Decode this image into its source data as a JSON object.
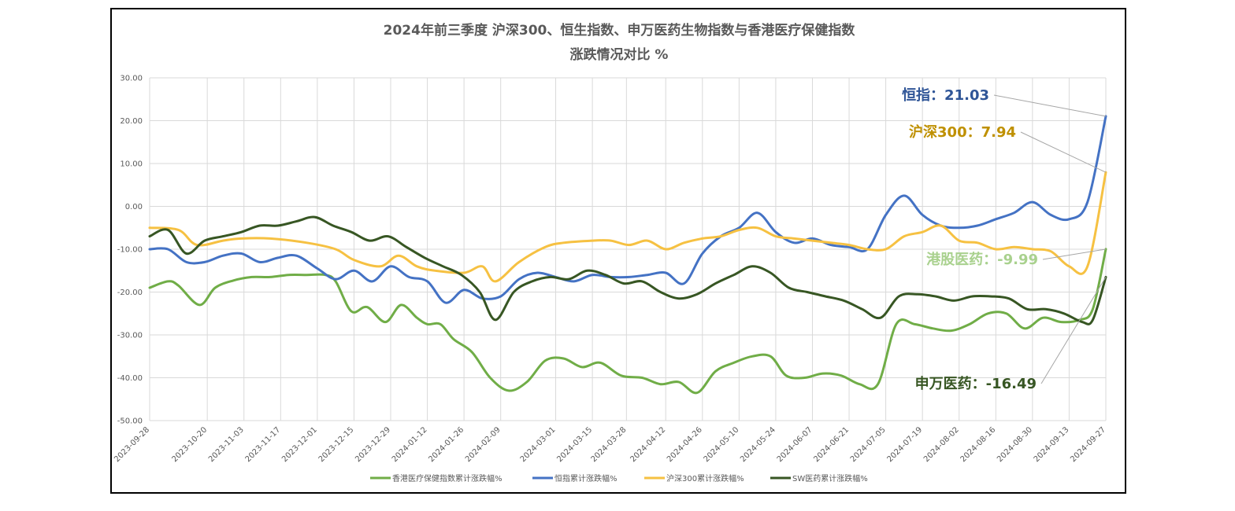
{
  "colors": {
    "hk_healthcare": "#70AD47",
    "hsi": "#4472C4",
    "csi300": "#F6C142",
    "sw_pharma": "#375623",
    "hsi_label": "#2F5597",
    "csi300_label": "#BF9000",
    "hk_healthcare_label": "#A9D18E",
    "sw_pharma_label": "#375623",
    "grid": "#D9D9D9",
    "leader": "#A6A6A6"
  },
  "chart_data": {
    "type": "line",
    "title": "2024年前三季度 沪深300、恒生指数、申万医药生物指数与香港医疗保健指数",
    "subtitle": "涨跌情况对比 %",
    "ylim": [
      -50,
      30
    ],
    "ytick_step": 10,
    "yticks": [
      "30.00",
      "20.00",
      "10.00",
      "0.00",
      "-10.00",
      "-20.00",
      "-30.00",
      "-40.00",
      "-50.00"
    ],
    "grid": true,
    "legend_position": "bottom",
    "x_range": [
      "2023-09-28",
      "2024-09-27"
    ],
    "x_ticks": [
      "2023-09-28",
      "2023-10-20",
      "2023-11-03",
      "2023-11-17",
      "2023-12-01",
      "2023-12-15",
      "2023-12-29",
      "2024-01-12",
      "2024-01-26",
      "2024-02-09",
      "2024-03-01",
      "2024-03-15",
      "2024-03-28",
      "2024-04-12",
      "2024-04-26",
      "2024-05-10",
      "2024-05-24",
      "2024-06-07",
      "2024-06-21",
      "2024-07-05",
      "2024-07-19",
      "2024-08-02",
      "2024-08-16",
      "2024-08-30",
      "2024-09-13",
      "2024-09-27"
    ],
    "series": [
      {
        "name": "香港医疗保健指数累计涨跌幅%",
        "color_key": "hk_healthcare",
        "points": [
          [
            "2023-09-28",
            -19
          ],
          [
            "2023-10-05",
            -17.5
          ],
          [
            "2023-10-09",
            -18.5
          ],
          [
            "2023-10-17",
            -23
          ],
          [
            "2023-10-23",
            -19
          ],
          [
            "2023-10-30",
            -17.3
          ],
          [
            "2023-11-06",
            -16.5
          ],
          [
            "2023-11-13",
            -16.5
          ],
          [
            "2023-11-20",
            -16
          ],
          [
            "2023-11-27",
            -16
          ],
          [
            "2023-12-04",
            -16
          ],
          [
            "2023-12-08",
            -17.5
          ],
          [
            "2023-12-14",
            -24.5
          ],
          [
            "2023-12-20",
            -23.5
          ],
          [
            "2023-12-27",
            -27
          ],
          [
            "2024-01-02",
            -23
          ],
          [
            "2024-01-08",
            -26
          ],
          [
            "2024-01-12",
            -27.5
          ],
          [
            "2024-01-17",
            -27.5
          ],
          [
            "2024-01-22",
            -31
          ],
          [
            "2024-01-29",
            -34
          ],
          [
            "2024-02-05",
            -40
          ],
          [
            "2024-02-12",
            -43
          ],
          [
            "2024-02-19",
            -41
          ],
          [
            "2024-02-26",
            -36
          ],
          [
            "2024-03-04",
            -35.5
          ],
          [
            "2024-03-11",
            -37.5
          ],
          [
            "2024-03-18",
            -36.5
          ],
          [
            "2024-03-26",
            -39.5
          ],
          [
            "2024-04-03",
            -40
          ],
          [
            "2024-04-10",
            -41.5
          ],
          [
            "2024-04-17",
            -41
          ],
          [
            "2024-04-24",
            -43.5
          ],
          [
            "2024-05-01",
            -38.5
          ],
          [
            "2024-05-08",
            -36.5
          ],
          [
            "2024-05-15",
            -35
          ],
          [
            "2024-05-22",
            -35
          ],
          [
            "2024-05-28",
            -39.5
          ],
          [
            "2024-06-04",
            -40
          ],
          [
            "2024-06-11",
            -39
          ],
          [
            "2024-06-18",
            -39.5
          ],
          [
            "2024-06-25",
            -41.5
          ],
          [
            "2024-07-02",
            -41.5
          ],
          [
            "2024-07-09",
            -27.5
          ],
          [
            "2024-07-16",
            -27.5
          ],
          [
            "2024-07-23",
            -28.5
          ],
          [
            "2024-07-30",
            -29
          ],
          [
            "2024-08-06",
            -27.5
          ],
          [
            "2024-08-13",
            -25
          ],
          [
            "2024-08-20",
            -25
          ],
          [
            "2024-08-27",
            -28.5
          ],
          [
            "2024-09-03",
            -26
          ],
          [
            "2024-09-10",
            -27
          ],
          [
            "2024-09-17",
            -26.5
          ],
          [
            "2024-09-22",
            -24
          ],
          [
            "2024-09-27",
            -9.99
          ]
        ]
      },
      {
        "name": "恒指累计涨跌幅%",
        "color_key": "hsi",
        "points": [
          [
            "2023-09-28",
            -10
          ],
          [
            "2023-10-05",
            -10
          ],
          [
            "2023-10-12",
            -13
          ],
          [
            "2023-10-19",
            -13
          ],
          [
            "2023-10-26",
            -11.5
          ],
          [
            "2023-11-02",
            -11
          ],
          [
            "2023-11-09",
            -13
          ],
          [
            "2023-11-16",
            -12
          ],
          [
            "2023-11-23",
            -11.5
          ],
          [
            "2023-12-01",
            -14.5
          ],
          [
            "2023-12-08",
            -17
          ],
          [
            "2023-12-15",
            -15
          ],
          [
            "2023-12-22",
            -17.5
          ],
          [
            "2023-12-29",
            -14
          ],
          [
            "2024-01-05",
            -16.5
          ],
          [
            "2024-01-12",
            -17.5
          ],
          [
            "2024-01-19",
            -22.5
          ],
          [
            "2024-01-26",
            -19.5
          ],
          [
            "2024-02-02",
            -21.5
          ],
          [
            "2024-02-09",
            -21
          ],
          [
            "2024-02-16",
            -17
          ],
          [
            "2024-02-23",
            -15.5
          ],
          [
            "2024-03-01",
            -16.5
          ],
          [
            "2024-03-08",
            -17.5
          ],
          [
            "2024-03-15",
            -16
          ],
          [
            "2024-03-22",
            -16.5
          ],
          [
            "2024-03-29",
            -16.5
          ],
          [
            "2024-04-05",
            -16
          ],
          [
            "2024-04-12",
            -15.5
          ],
          [
            "2024-04-19",
            -18
          ],
          [
            "2024-04-26",
            -11
          ],
          [
            "2024-05-03",
            -7
          ],
          [
            "2024-05-10",
            -5
          ],
          [
            "2024-05-17",
            -1.5
          ],
          [
            "2024-05-24",
            -6
          ],
          [
            "2024-05-31",
            -8.5
          ],
          [
            "2024-06-07",
            -7.5
          ],
          [
            "2024-06-14",
            -9
          ],
          [
            "2024-06-21",
            -9.5
          ],
          [
            "2024-06-28",
            -10
          ],
          [
            "2024-07-05",
            -2
          ],
          [
            "2024-07-12",
            2.5
          ],
          [
            "2024-07-19",
            -2
          ],
          [
            "2024-07-26",
            -4.5
          ],
          [
            "2024-08-02",
            -5
          ],
          [
            "2024-08-09",
            -4.5
          ],
          [
            "2024-08-16",
            -3
          ],
          [
            "2024-08-23",
            -1.5
          ],
          [
            "2024-08-30",
            1
          ],
          [
            "2024-09-06",
            -2
          ],
          [
            "2024-09-13",
            -3
          ],
          [
            "2024-09-20",
            1
          ],
          [
            "2024-09-27",
            21.03
          ]
        ]
      },
      {
        "name": "沪深300累计涨跌幅%",
        "color_key": "csi300",
        "points": [
          [
            "2023-09-28",
            -5
          ],
          [
            "2023-10-09",
            -5.5
          ],
          [
            "2023-10-16",
            -9
          ],
          [
            "2023-10-26",
            -8
          ],
          [
            "2023-11-02",
            -7.5
          ],
          [
            "2023-11-13",
            -7.5
          ],
          [
            "2023-11-27",
            -8.5
          ],
          [
            "2023-12-08",
            -10
          ],
          [
            "2023-12-15",
            -12.5
          ],
          [
            "2023-12-25",
            -14
          ],
          [
            "2024-01-01",
            -11.5
          ],
          [
            "2024-01-08",
            -14
          ],
          [
            "2024-01-15",
            -15
          ],
          [
            "2024-01-26",
            -15.5
          ],
          [
            "2024-02-02",
            -14
          ],
          [
            "2024-02-07",
            -17.5
          ],
          [
            "2024-02-16",
            -13
          ],
          [
            "2024-02-26",
            -9.5
          ],
          [
            "2024-03-04",
            -8.5
          ],
          [
            "2024-03-15",
            -8
          ],
          [
            "2024-03-22",
            -8
          ],
          [
            "2024-03-29",
            -9
          ],
          [
            "2024-04-05",
            -8
          ],
          [
            "2024-04-12",
            -10
          ],
          [
            "2024-04-19",
            -8.5
          ],
          [
            "2024-04-26",
            -7.5
          ],
          [
            "2024-05-03",
            -7
          ],
          [
            "2024-05-10",
            -5.5
          ],
          [
            "2024-05-17",
            -5
          ],
          [
            "2024-05-24",
            -7
          ],
          [
            "2024-05-31",
            -7.5
          ],
          [
            "2024-06-07",
            -8
          ],
          [
            "2024-06-14",
            -8.5
          ],
          [
            "2024-06-21",
            -9
          ],
          [
            "2024-06-28",
            -10
          ],
          [
            "2024-07-05",
            -10
          ],
          [
            "2024-07-12",
            -7
          ],
          [
            "2024-07-19",
            -6
          ],
          [
            "2024-07-26",
            -4.5
          ],
          [
            "2024-08-02",
            -8
          ],
          [
            "2024-08-09",
            -8.5
          ],
          [
            "2024-08-16",
            -10
          ],
          [
            "2024-08-23",
            -9.5
          ],
          [
            "2024-08-30",
            -10
          ],
          [
            "2024-09-06",
            -10.5
          ],
          [
            "2024-09-13",
            -14
          ],
          [
            "2024-09-20",
            -14
          ],
          [
            "2024-09-27",
            7.94
          ]
        ]
      },
      {
        "name": "SW医药累计涨跌幅%",
        "color_key": "sw_pharma",
        "points": [
          [
            "2023-09-28",
            -7
          ],
          [
            "2023-10-05",
            -5.5
          ],
          [
            "2023-10-12",
            -11
          ],
          [
            "2023-10-19",
            -8
          ],
          [
            "2023-10-26",
            -7
          ],
          [
            "2023-11-02",
            -6
          ],
          [
            "2023-11-09",
            -4.5
          ],
          [
            "2023-11-16",
            -4.5
          ],
          [
            "2023-11-23",
            -3.5
          ],
          [
            "2023-11-30",
            -2.5
          ],
          [
            "2023-12-07",
            -4.5
          ],
          [
            "2023-12-14",
            -6
          ],
          [
            "2023-12-21",
            -8
          ],
          [
            "2023-12-28",
            -7
          ],
          [
            "2024-01-04",
            -9.5
          ],
          [
            "2024-01-11",
            -12
          ],
          [
            "2024-01-18",
            -14
          ],
          [
            "2024-01-25",
            -16
          ],
          [
            "2024-02-01",
            -20
          ],
          [
            "2024-02-07",
            -26.5
          ],
          [
            "2024-02-14",
            -20
          ],
          [
            "2024-02-21",
            -17.5
          ],
          [
            "2024-02-28",
            -16.5
          ],
          [
            "2024-03-06",
            -17
          ],
          [
            "2024-03-13",
            -15
          ],
          [
            "2024-03-20",
            -16
          ],
          [
            "2024-03-27",
            -18
          ],
          [
            "2024-04-03",
            -17.5
          ],
          [
            "2024-04-10",
            -20
          ],
          [
            "2024-04-17",
            -21.5
          ],
          [
            "2024-04-24",
            -20.5
          ],
          [
            "2024-05-01",
            -18
          ],
          [
            "2024-05-08",
            -16
          ],
          [
            "2024-05-15",
            -14
          ],
          [
            "2024-05-22",
            -15.5
          ],
          [
            "2024-05-29",
            -19
          ],
          [
            "2024-06-05",
            -20
          ],
          [
            "2024-06-12",
            -21
          ],
          [
            "2024-06-19",
            -22
          ],
          [
            "2024-06-26",
            -24
          ],
          [
            "2024-07-03",
            -26
          ],
          [
            "2024-07-10",
            -21
          ],
          [
            "2024-07-17",
            -20.5
          ],
          [
            "2024-07-24",
            -21
          ],
          [
            "2024-07-31",
            -22
          ],
          [
            "2024-08-07",
            -21
          ],
          [
            "2024-08-14",
            -21
          ],
          [
            "2024-08-21",
            -21.5
          ],
          [
            "2024-08-28",
            -24
          ],
          [
            "2024-09-04",
            -24
          ],
          [
            "2024-09-11",
            -25
          ],
          [
            "2024-09-18",
            -27
          ],
          [
            "2024-09-22",
            -26.5
          ],
          [
            "2024-09-27",
            -16.49
          ]
        ]
      }
    ],
    "annotations": [
      {
        "label": "恒指：21.03",
        "series": 1,
        "color_key": "hsi_label"
      },
      {
        "label": "沪深300：7.94",
        "series": 2,
        "color_key": "csi300_label"
      },
      {
        "label": "港股医药：-9.99",
        "series": 0,
        "color_key": "hk_healthcare_label"
      },
      {
        "label": "申万医药：-16.49",
        "series": 3,
        "color_key": "sw_pharma_label"
      }
    ]
  }
}
